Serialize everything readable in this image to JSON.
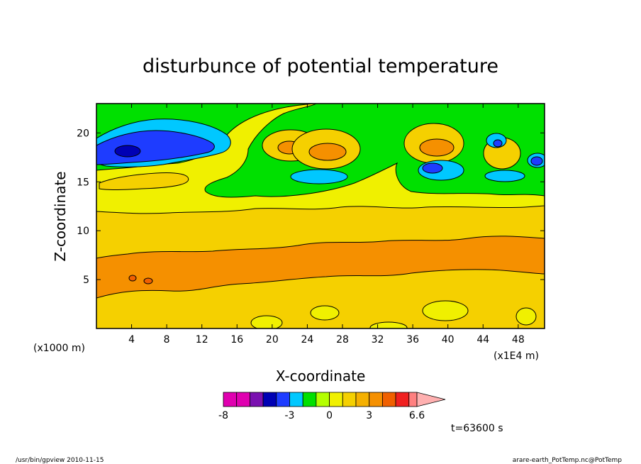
{
  "chart_data": {
    "type": "heatmap",
    "title": "disturbunce of potential temperature",
    "xlabel": "X-coordinate",
    "ylabel": "Z-coordinate",
    "x_unit_left": "(x1000 m)",
    "x_unit_right": "(x1E4 m)",
    "xlim": [
      0,
      51
    ],
    "ylim": [
      0,
      23
    ],
    "x_ticks": [
      4,
      8,
      12,
      16,
      20,
      24,
      28,
      32,
      36,
      40,
      44,
      48
    ],
    "y_ticks": [
      5,
      10,
      15,
      20
    ],
    "time_label": "t=63600 s",
    "colorbar": {
      "levels": [
        -8,
        -7,
        -6,
        -5,
        -4,
        -3,
        -2,
        -1,
        0,
        1,
        2,
        3,
        4,
        5,
        6,
        6.6
      ],
      "tick_labels": [
        "-8",
        "-3",
        "0",
        "3",
        "6.6"
      ],
      "tick_values": [
        -8,
        -3,
        0,
        3,
        6.6
      ],
      "colors": [
        "#e000b0",
        "#e000b0",
        "#e000b0",
        "#7a10b0",
        "#0000b4",
        "#1e3cff",
        "#00c8ff",
        "#00e000",
        "#b4ff00",
        "#f0f000",
        "#f5d000",
        "#f5b000",
        "#f59000",
        "#f06000",
        "#f02020",
        "#ff8080",
        "#ffb0b0"
      ]
    },
    "bands": [
      {
        "z_bottom": 0,
        "z_top": 3,
        "value": 1.8
      },
      {
        "z_bottom": 3,
        "z_top": 6.8,
        "value": 3.3
      },
      {
        "z_bottom": 6.8,
        "z_top": 11.8,
        "value": 2.7
      },
      {
        "z_bottom": 11.8,
        "z_top": 14.3,
        "value": 0.9
      },
      {
        "z_bottom": 14.3,
        "z_top": 17,
        "value": 0.6
      },
      {
        "z_bottom": 17,
        "z_top": 23,
        "value": -0.5
      }
    ]
  },
  "footer": {
    "left": "/usr/bin/gpview   2010-11-15",
    "right": "arare-earth_PotTemp.nc@PotTemp"
  }
}
